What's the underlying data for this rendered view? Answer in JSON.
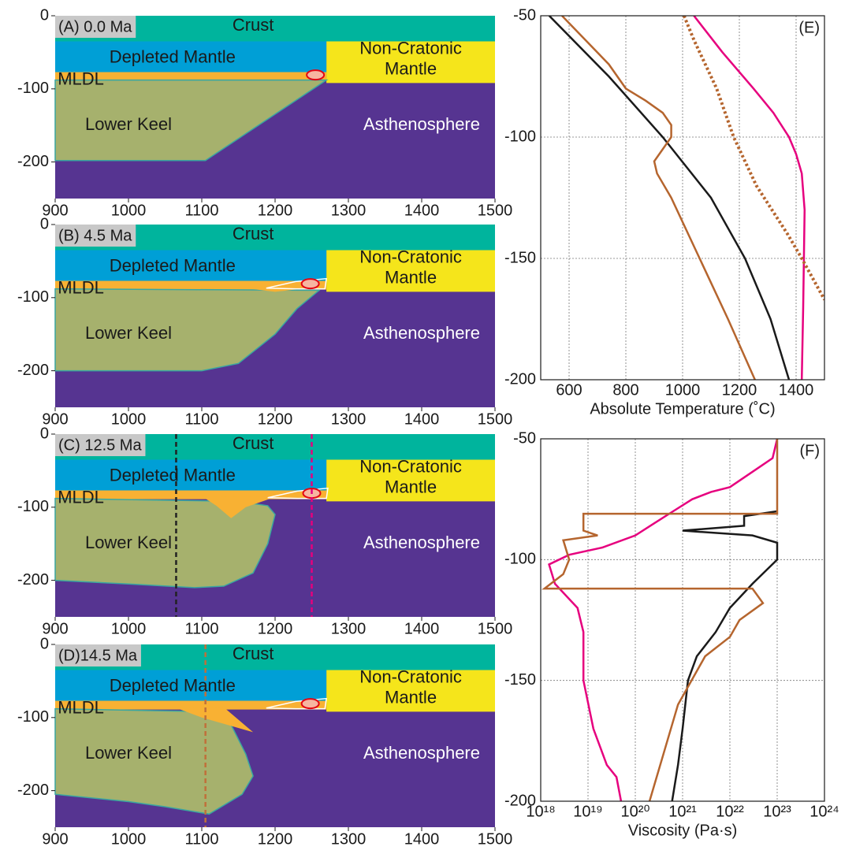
{
  "chart_data": [
    {
      "type": "section",
      "title": "(A)  0.0 Ma",
      "labels": [
        "Crust",
        "Depleted Mantle",
        "Non-Cratonic",
        "Mantle",
        "MLDL",
        "Lower Keel",
        "Asthenosphere"
      ],
      "xlim": [
        900,
        1500
      ],
      "ylim": [
        -250,
        0
      ],
      "xticks": [
        900,
        1000,
        1100,
        1200,
        1300,
        1400,
        1500
      ],
      "yticks": [
        -200,
        -100,
        0
      ]
    },
    {
      "type": "section",
      "title": "(B) 4.5 Ma",
      "labels": [
        "Crust",
        "Depleted Mantle",
        "Non-Cratonic",
        "Mantle",
        "MLDL",
        "Lower Keel",
        "Asthenosphere"
      ],
      "xlim": [
        900,
        1500
      ],
      "ylim": [
        -250,
        0
      ],
      "xticks": [
        900,
        1000,
        1100,
        1200,
        1300,
        1400,
        1500
      ],
      "yticks": [
        -200,
        -100,
        0
      ]
    },
    {
      "type": "section",
      "title": "(C) 12.5 Ma",
      "labels": [
        "Crust",
        "Depleted Mantle",
        "Non-Cratonic",
        "Mantle",
        "MLDL",
        "Lower Keel",
        "Asthenosphere"
      ],
      "xlim": [
        900,
        1500
      ],
      "ylim": [
        -250,
        0
      ],
      "xticks": [
        900,
        1000,
        1100,
        1200,
        1300,
        1400,
        1500
      ],
      "yticks": [
        -200,
        -100,
        0
      ],
      "profiles": [
        {
          "x": 1065,
          "color": "#222222"
        },
        {
          "x": 1250,
          "color": "#e6007e"
        }
      ]
    },
    {
      "type": "section",
      "title": "(D)14.5 Ma",
      "labels": [
        "Crust",
        "Depleted Mantle",
        "Non-Cratonic",
        "Mantle",
        "MLDL",
        "Lower Keel",
        "Asthenosphere"
      ],
      "xlim": [
        900,
        1500
      ],
      "ylim": [
        -250,
        0
      ],
      "xticks": [
        900,
        1000,
        1100,
        1200,
        1300,
        1400,
        1500
      ],
      "yticks": [
        -200,
        -100,
        0
      ],
      "profiles": [
        {
          "x": 1105,
          "color": "#c0703a"
        }
      ]
    },
    {
      "type": "profile",
      "title": "(E)",
      "xlabel": "Absolute Temperature (˚C)",
      "xlim": [
        500,
        1500
      ],
      "ylim": [
        -200,
        -50
      ],
      "xticks": [
        600,
        800,
        1000,
        1200,
        1400
      ],
      "yticks": [
        -200,
        -150,
        -100,
        -50
      ],
      "grid": true,
      "series": [
        {
          "color": "#1a1a1a",
          "depth": [
            -50,
            -75,
            -100,
            -125,
            -150,
            -175,
            -200
          ],
          "values": [
            530,
            740,
            930,
            1100,
            1220,
            1310,
            1375
          ]
        },
        {
          "color": "#b5652e",
          "depth": [
            -50,
            -70,
            -80,
            -85,
            -90,
            -95,
            -100,
            -105,
            -110,
            -115,
            -125,
            -150,
            -175,
            -200
          ],
          "values": [
            575,
            740,
            800,
            870,
            930,
            960,
            960,
            930,
            900,
            910,
            960,
            1060,
            1160,
            1255
          ]
        },
        {
          "color": "#e6007e",
          "depth": [
            -50,
            -65,
            -80,
            -90,
            -100,
            -107,
            -115,
            -130,
            -170,
            -200
          ],
          "values": [
            1040,
            1140,
            1250,
            1320,
            1375,
            1400,
            1420,
            1430,
            1425,
            1420
          ]
        },
        {
          "color": "#b5652e",
          "style": "dotted",
          "depth": [
            -50,
            -60,
            -80,
            -100,
            -120,
            -140,
            -150,
            -167
          ],
          "values": [
            1005,
            1040,
            1120,
            1180,
            1260,
            1370,
            1420,
            1500
          ]
        }
      ]
    },
    {
      "type": "profile",
      "title": "(F)",
      "xlabel": "Viscosity (Pa·s)",
      "xscale": "log",
      "xlim": [
        1e+18,
        1e+24
      ],
      "ylim": [
        -200,
        -50
      ],
      "xticks": [
        {
          "value": 1e+18,
          "label": "10¹⁸"
        },
        {
          "value": 1e+19,
          "label": "10¹⁹"
        },
        {
          "value": 1e+20,
          "label": "10²⁰"
        },
        {
          "value": 1e+21,
          "label": "10²¹"
        },
        {
          "value": 1e+22,
          "label": "10²²"
        },
        {
          "value": 1e+23,
          "label": "10²³"
        },
        {
          "value": 1e+24,
          "label": "10²⁴"
        }
      ],
      "yticks": [
        -200,
        -150,
        -100,
        -50
      ],
      "grid": true,
      "series": [
        {
          "color": "#e6007e",
          "depth": [
            -50,
            -58,
            -62,
            -66,
            -70,
            -72,
            -75,
            -80,
            -85,
            -90,
            -95,
            -98,
            -102,
            -110,
            -120,
            -130,
            -150,
            -170,
            -185,
            -190,
            -200
          ],
          "values": [
            1e+23,
            8e+22,
            4e+22,
            2e+22,
            1e+22,
            4e+21,
            1.6e+21,
            6.3e+20,
            2.5e+20,
            1e+20,
            2e+19,
            4e+18,
            1.5e+18,
            2e+18,
            6e+18,
            8e+18,
            8e+18,
            1.3e+19,
            2.5e+19,
            4e+19,
            5e+19
          ]
        },
        {
          "color": "#1a1a1a",
          "depth": [
            -80,
            -82,
            -86,
            -88,
            -90,
            -93,
            -100,
            -110,
            -120,
            -130,
            -140,
            -150,
            -170,
            -185,
            -200
          ],
          "values": [
            1e+23,
            2e+22,
            2e+22,
            1e+21,
            3e+22,
            1e+23,
            1e+23,
            3e+22,
            1e+22,
            5e+21,
            2e+21,
            1.3e+21,
            1e+21,
            8e+20,
            6e+20
          ]
        },
        {
          "color": "#b5652e",
          "depth": [
            -50,
            -81,
            -81,
            -88,
            -90,
            -92,
            -100,
            -106,
            -112,
            -112,
            -118,
            -125,
            -132,
            -140,
            -160,
            -180,
            -200
          ],
          "values": [
            1e+23,
            1e+23,
            8e+18,
            8e+18,
            1.6e+19,
            3e+18,
            4e+18,
            3e+18,
            1.2e+18,
            3e+22,
            5e+22,
            1.6e+22,
            1e+22,
            3e+21,
            8e+20,
            4e+20,
            2e+20
          ]
        }
      ]
    }
  ]
}
